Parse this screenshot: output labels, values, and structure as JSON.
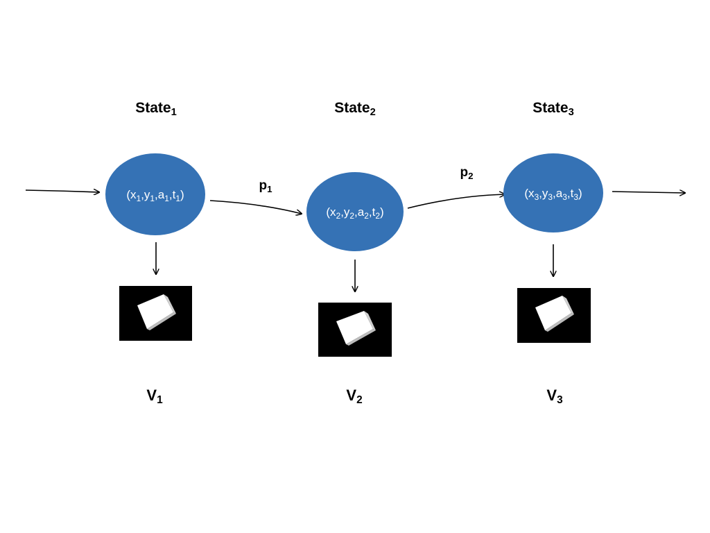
{
  "states": [
    {
      "title": {
        "base": "State",
        "sub": "1"
      },
      "tuple": [
        {
          "t": "(x"
        },
        {
          "s": "1"
        },
        {
          "t": ",y"
        },
        {
          "s": "1"
        },
        {
          "t": ",a"
        },
        {
          "s": "1"
        },
        {
          "t": ",t"
        },
        {
          "s": "1"
        },
        {
          "t": ")"
        }
      ],
      "observation": {
        "base": "V",
        "sub": "1"
      }
    },
    {
      "title": {
        "base": "State",
        "sub": "2"
      },
      "tuple": [
        {
          "t": "(x"
        },
        {
          "s": "2"
        },
        {
          "t": ",y"
        },
        {
          "s": "2"
        },
        {
          "t": ",a"
        },
        {
          "s": "2"
        },
        {
          "t": ",t"
        },
        {
          "s": "2"
        },
        {
          "t": ")"
        }
      ],
      "observation": {
        "base": "V",
        "sub": "2"
      }
    },
    {
      "title": {
        "base": "State",
        "sub": "3"
      },
      "tuple": [
        {
          "t": "(x"
        },
        {
          "s": "3"
        },
        {
          "t": ",y"
        },
        {
          "s": "3"
        },
        {
          "t": ",a"
        },
        {
          "s": "3"
        },
        {
          "t": ",t"
        },
        {
          "s": "3"
        },
        {
          "t": ")"
        }
      ],
      "observation": {
        "base": "V",
        "sub": "3"
      }
    }
  ],
  "transitions": [
    {
      "label": {
        "base": "p",
        "sub": "1"
      }
    },
    {
      "label": {
        "base": "p",
        "sub": "2"
      }
    }
  ],
  "colors": {
    "node_fill": "#3572B5",
    "image_bg": "#000000",
    "cube_face": "#ffffff",
    "cube_shade": "#cfcfcf",
    "arrow": "#000000"
  }
}
